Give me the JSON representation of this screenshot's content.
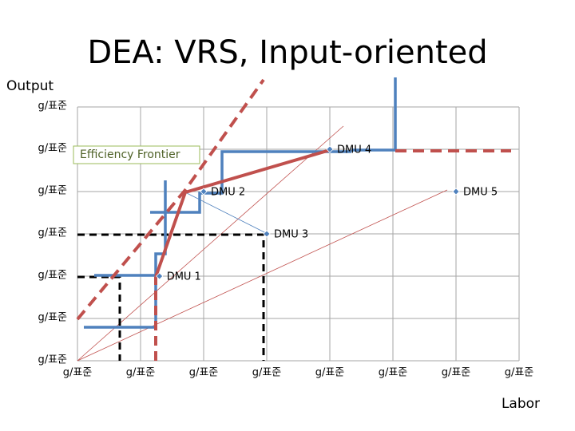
{
  "chart_data": {
    "type": "scatter",
    "title": "DEA: VRS, Input-oriented",
    "y_label": "Output",
    "x_label": "Labor",
    "annotation": "Efficiency Frontier",
    "xlim": [
      0,
      7
    ],
    "ylim": [
      0,
      6
    ],
    "xticks": [
      {
        "value": 0,
        "label": "g/표준"
      },
      {
        "value": 1,
        "label": "g/표준"
      },
      {
        "value": 2,
        "label": "g/표준"
      },
      {
        "value": 3,
        "label": "g/표준"
      },
      {
        "value": 4,
        "label": "g/표준"
      },
      {
        "value": 5,
        "label": "g/표준"
      },
      {
        "value": 6,
        "label": "g/표준"
      },
      {
        "value": 7,
        "label": "g/표준"
      }
    ],
    "yticks": [
      {
        "value": 0,
        "label": "g/표준"
      },
      {
        "value": 1,
        "label": "g/표준"
      },
      {
        "value": 2,
        "label": "g/표준"
      },
      {
        "value": 3,
        "label": "g/표준"
      },
      {
        "value": 4,
        "label": "g/표준"
      },
      {
        "value": 5,
        "label": "g/표준"
      },
      {
        "value": 6,
        "label": "g/표준"
      }
    ],
    "grid": true,
    "points": {
      "color": "#4f81bd",
      "x": [
        1.3,
        2,
        3,
        4,
        6
      ],
      "values": [
        2,
        4,
        3,
        5,
        4
      ],
      "labels": [
        "DMU 1",
        "DMU 2",
        "DMU 3",
        "DMU 4",
        "DMU 5"
      ]
    }
  }
}
